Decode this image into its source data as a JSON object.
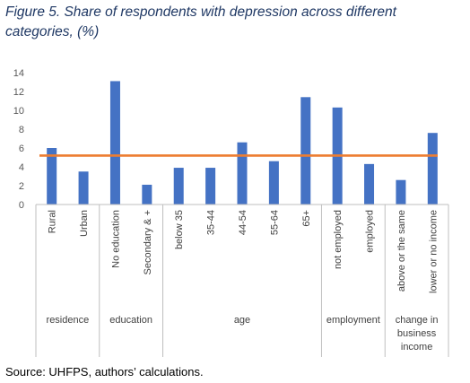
{
  "figure": {
    "title": "Figure 5. Share of respondents with depression across different categories, (%)",
    "source": "Source: UHFPS, authors’ calculations."
  },
  "chart_data": {
    "type": "bar",
    "title": "Figure 5. Share of respondents with depression across different categories, (%)",
    "xlabel": "",
    "ylabel": "",
    "ylim": [
      0,
      14
    ],
    "yticks": [
      0,
      2,
      4,
      6,
      8,
      10,
      12,
      14
    ],
    "grid": false,
    "legend": "none",
    "categories": [
      "Rural",
      "Urban",
      "No education",
      "Secondary & +",
      "below 35",
      "35-44",
      "44-54",
      "55-64",
      "65+",
      "not employed",
      "employed",
      "above or the same",
      "lower or no income"
    ],
    "values": [
      6.0,
      3.5,
      13.1,
      2.1,
      3.9,
      3.9,
      6.6,
      4.6,
      11.4,
      10.3,
      4.3,
      2.6,
      7.6
    ],
    "groups": [
      {
        "label": [
          "residence"
        ],
        "count": 2
      },
      {
        "label": [
          "education"
        ],
        "count": 2
      },
      {
        "label": [
          "age"
        ],
        "count": 5
      },
      {
        "label": [
          "employment"
        ],
        "count": 2
      },
      {
        "label": [
          "change in",
          "business",
          "income"
        ],
        "count": 2
      }
    ],
    "reference_line": {
      "value": 5.2
    },
    "colors": {
      "bar": "#4472c4",
      "reference_line": "#ed7d31",
      "axis": "#bfbfbf",
      "separator": "#bfbfbf"
    }
  }
}
